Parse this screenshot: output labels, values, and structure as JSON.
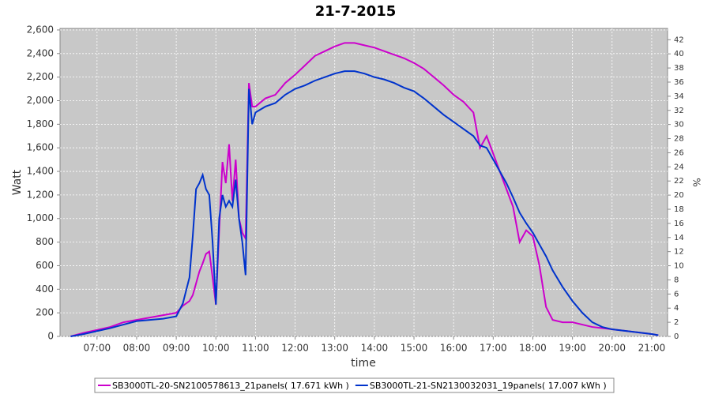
{
  "chart_data": {
    "type": "line",
    "title": "21-7-2015",
    "x_label": "time",
    "y_label": "Watt",
    "y2_label": "%",
    "x": [
      "06:20",
      "06:40",
      "07:00",
      "07:20",
      "07:40",
      "08:00",
      "08:20",
      "08:40",
      "09:00",
      "09:10",
      "09:20",
      "09:25",
      "09:30",
      "09:35",
      "09:40",
      "09:45",
      "09:50",
      "09:55",
      "10:00",
      "10:05",
      "10:10",
      "10:15",
      "10:20",
      "10:25",
      "10:30",
      "10:35",
      "10:40",
      "10:45",
      "10:50",
      "10:55",
      "11:00",
      "11:15",
      "11:30",
      "11:45",
      "12:00",
      "12:15",
      "12:30",
      "12:45",
      "13:00",
      "13:15",
      "13:30",
      "13:45",
      "14:00",
      "14:15",
      "14:30",
      "14:45",
      "15:00",
      "15:15",
      "15:30",
      "15:45",
      "16:00",
      "16:15",
      "16:30",
      "16:40",
      "16:50",
      "17:00",
      "17:10",
      "17:20",
      "17:30",
      "17:40",
      "17:50",
      "18:00",
      "18:10",
      "18:20",
      "18:30",
      "18:45",
      "19:00",
      "19:15",
      "19:30",
      "19:45",
      "20:00",
      "20:30",
      "21:00",
      "21:10"
    ],
    "series": [
      {
        "name": "SB3000TL-20-SN2100578613_21panels( 17.671 kWh )",
        "color": "#cc00cc",
        "values": [
          0,
          30,
          55,
          80,
          120,
          140,
          160,
          180,
          200,
          260,
          300,
          350,
          450,
          550,
          620,
          700,
          720,
          500,
          270,
          900,
          1480,
          1300,
          1630,
          1150,
          1500,
          1000,
          880,
          830,
          2150,
          1950,
          1950,
          2020,
          2050,
          2150,
          2220,
          2300,
          2380,
          2420,
          2460,
          2490,
          2490,
          2470,
          2450,
          2420,
          2390,
          2360,
          2320,
          2270,
          2200,
          2130,
          2050,
          1990,
          1900,
          1600,
          1700,
          1550,
          1400,
          1250,
          1100,
          800,
          900,
          850,
          600,
          250,
          140,
          120,
          120,
          100,
          80,
          70,
          60,
          40,
          20,
          10
        ]
      },
      {
        "name": "SB3000TL-21-SN2130032031_19panels( 17.007 kWh )",
        "color": "#0033cc",
        "values": [
          0,
          20,
          45,
          70,
          100,
          130,
          140,
          150,
          170,
          280,
          500,
          850,
          1250,
          1300,
          1370,
          1250,
          1200,
          800,
          270,
          1000,
          1200,
          1100,
          1150,
          1100,
          1330,
          1000,
          800,
          520,
          2100,
          1800,
          1900,
          1950,
          1980,
          2050,
          2100,
          2130,
          2170,
          2200,
          2230,
          2250,
          2250,
          2230,
          2200,
          2180,
          2150,
          2110,
          2080,
          2020,
          1950,
          1880,
          1820,
          1760,
          1700,
          1620,
          1600,
          1500,
          1400,
          1300,
          1180,
          1050,
          960,
          880,
          780,
          680,
          560,
          420,
          300,
          200,
          120,
          80,
          60,
          40,
          20,
          10
        ]
      }
    ],
    "xlim": [
      "06:04",
      "21:24"
    ],
    "xticks": [
      "07:00",
      "08:00",
      "09:00",
      "10:00",
      "11:00",
      "12:00",
      "13:00",
      "14:00",
      "15:00",
      "16:00",
      "17:00",
      "18:00",
      "19:00",
      "20:00",
      "21:00"
    ],
    "ylim": [
      0,
      2613
    ],
    "yticks": [
      0,
      {
        "value": 200,
        "label": "200"
      },
      400,
      600,
      800,
      {
        "value": 1000,
        "label": "1,000"
      },
      {
        "value": 1200,
        "label": "1,200"
      },
      {
        "value": 1400,
        "label": "1,400"
      },
      {
        "value": 1600,
        "label": "1,600"
      },
      {
        "value": 1800,
        "label": "1,800"
      },
      {
        "value": 2000,
        "label": "2,000"
      },
      {
        "value": 2200,
        "label": "2,200"
      },
      {
        "value": 2400,
        "label": "2,400"
      },
      {
        "value": 2600,
        "label": "2,600"
      }
    ],
    "y2lim": [
      0,
      43.6
    ],
    "y2ticks": [
      0,
      2,
      4,
      6,
      8,
      10,
      12,
      14,
      16,
      18,
      20,
      22,
      24,
      26,
      28,
      30,
      32,
      34,
      36,
      38,
      40,
      42
    ],
    "grid": true
  }
}
